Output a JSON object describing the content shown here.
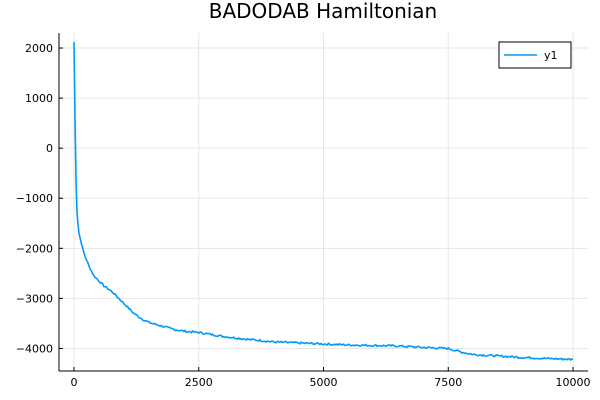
{
  "chart_data": {
    "type": "line",
    "title": "BADODAB Hamiltonian",
    "xlabel": "",
    "ylabel": "",
    "xlim": [
      -300,
      10300
    ],
    "ylim": [
      -4450,
      2300
    ],
    "xticks": [
      0,
      2500,
      5000,
      7500,
      10000
    ],
    "xtick_labels": [
      "0",
      "2500",
      "5000",
      "7500",
      "10000"
    ],
    "yticks": [
      -4000,
      -3000,
      -2000,
      -1000,
      0,
      1000,
      2000
    ],
    "ytick_labels": [
      "−4000",
      "−3000",
      "−2000",
      "−1000",
      "0",
      "1000",
      "2000"
    ],
    "grid": true,
    "legend_position": "top-right",
    "series": [
      {
        "name": "y1",
        "color": "#009af9",
        "x": [
          0,
          20,
          40,
          60,
          80,
          100,
          150,
          200,
          300,
          400,
          500,
          600,
          700,
          800,
          900,
          1000,
          1100,
          1200,
          1300,
          1400,
          1500,
          1750,
          2000,
          2250,
          2500,
          2750,
          3000,
          3250,
          3500,
          3750,
          4000,
          4500,
          5000,
          5500,
          6000,
          6500,
          7000,
          7250,
          7500,
          7750,
          8000,
          8500,
          9000,
          9500,
          10000
        ],
        "y": [
          2120,
          600,
          -600,
          -1300,
          -1500,
          -1700,
          -1900,
          -2100,
          -2350,
          -2550,
          -2650,
          -2750,
          -2820,
          -2900,
          -3000,
          -3100,
          -3200,
          -3300,
          -3370,
          -3430,
          -3480,
          -3550,
          -3620,
          -3660,
          -3680,
          -3720,
          -3760,
          -3790,
          -3820,
          -3840,
          -3870,
          -3890,
          -3910,
          -3930,
          -3940,
          -3950,
          -3980,
          -3990,
          -4000,
          -4070,
          -4120,
          -4150,
          -4180,
          -4200,
          -4220
        ]
      }
    ]
  }
}
